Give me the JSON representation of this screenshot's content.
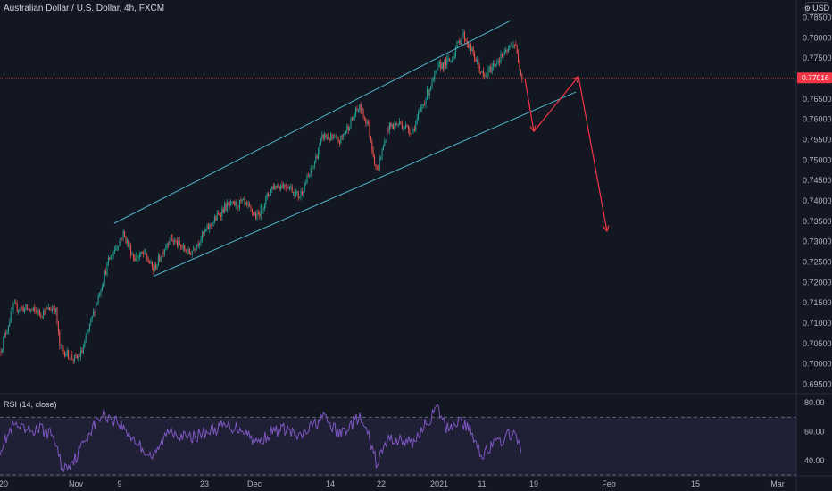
{
  "chart_data": [
    {
      "type": "candlestick",
      "title": "Australian Dollar / U.S. Dollar, 4h, FXCM",
      "currency": "USD",
      "ylim": [
        0.6925,
        0.7875
      ],
      "ytick_labels": [
        "0.78500",
        "0.78000",
        "0.77500",
        "0.77000",
        "0.76500",
        "0.76000",
        "0.75500",
        "0.75000",
        "0.74500",
        "0.74000",
        "0.73500",
        "0.73000",
        "0.72500",
        "0.72000",
        "0.71500",
        "0.71000",
        "0.70500",
        "0.70000",
        "0.69500"
      ],
      "ytick_values": [
        0.785,
        0.78,
        0.775,
        0.77,
        0.765,
        0.76,
        0.755,
        0.75,
        0.745,
        0.74,
        0.735,
        0.73,
        0.725,
        0.72,
        0.715,
        0.71,
        0.705,
        0.7,
        0.695
      ],
      "xtick_labels": [
        "20",
        "Nov",
        "9",
        "23",
        "Dec",
        "14",
        "22",
        "2021",
        "11",
        "19",
        "Feb",
        "15",
        "Mar"
      ],
      "current_price": "0.77016",
      "current_price_value": 0.77016,
      "up_color": "#26a69a",
      "down_color": "#ef5350",
      "price_path": [
        {
          "t": 0,
          "p": 0.703
        },
        {
          "t": 15,
          "p": 0.714
        },
        {
          "t": 30,
          "p": 0.7135
        },
        {
          "t": 45,
          "p": 0.7125
        },
        {
          "t": 62,
          "p": 0.714
        },
        {
          "t": 67,
          "p": 0.704
        },
        {
          "t": 75,
          "p": 0.7025
        },
        {
          "t": 85,
          "p": 0.701
        },
        {
          "t": 92,
          "p": 0.703
        },
        {
          "t": 100,
          "p": 0.709
        },
        {
          "t": 110,
          "p": 0.7165
        },
        {
          "t": 122,
          "p": 0.7255
        },
        {
          "t": 138,
          "p": 0.732
        },
        {
          "t": 150,
          "p": 0.726
        },
        {
          "t": 162,
          "p": 0.727
        },
        {
          "t": 172,
          "p": 0.723
        },
        {
          "t": 190,
          "p": 0.731
        },
        {
          "t": 212,
          "p": 0.727
        },
        {
          "t": 232,
          "p": 0.733
        },
        {
          "t": 252,
          "p": 0.7385
        },
        {
          "t": 272,
          "p": 0.7395
        },
        {
          "t": 288,
          "p": 0.736
        },
        {
          "t": 305,
          "p": 0.7435
        },
        {
          "t": 322,
          "p": 0.744
        },
        {
          "t": 335,
          "p": 0.741
        },
        {
          "t": 350,
          "p": 0.748
        },
        {
          "t": 362,
          "p": 0.756
        },
        {
          "t": 380,
          "p": 0.7545
        },
        {
          "t": 392,
          "p": 0.759
        },
        {
          "t": 402,
          "p": 0.763
        },
        {
          "t": 412,
          "p": 0.759
        },
        {
          "t": 422,
          "p": 0.747
        },
        {
          "t": 435,
          "p": 0.758
        },
        {
          "t": 448,
          "p": 0.759
        },
        {
          "t": 462,
          "p": 0.757
        },
        {
          "t": 478,
          "p": 0.766
        },
        {
          "t": 492,
          "p": 0.773
        },
        {
          "t": 505,
          "p": 0.7745
        },
        {
          "t": 518,
          "p": 0.781
        },
        {
          "t": 530,
          "p": 0.776
        },
        {
          "t": 542,
          "p": 0.77
        },
        {
          "t": 555,
          "p": 0.774
        },
        {
          "t": 566,
          "p": 0.776
        },
        {
          "t": 576,
          "p": 0.779
        },
        {
          "t": 585,
          "p": 0.7702
        }
      ],
      "channel": {
        "upper": [
          {
            "t": 128,
            "p": 0.7345
          },
          {
            "t": 572,
            "p": 0.7842
          }
        ],
        "lower": [
          {
            "t": 172,
            "p": 0.7215
          },
          {
            "t": 645,
            "p": 0.7667
          }
        ]
      },
      "projection": [
        {
          "t": 588,
          "p": 0.77
        },
        {
          "t": 598,
          "p": 0.757
        },
        {
          "t": 648,
          "p": 0.7705
        },
        {
          "t": 680,
          "p": 0.7325
        }
      ]
    },
    {
      "type": "line",
      "title": "RSI (14, close)",
      "ylim": [
        30,
        85
      ],
      "ytick_labels": [
        "80.00",
        "60.00",
        "40.00"
      ],
      "ytick_values": [
        80,
        60,
        40
      ],
      "bands": [
        70,
        30
      ],
      "line_color": "#7e57c2",
      "rsi_path": [
        {
          "t": 0,
          "p": 48
        },
        {
          "t": 15,
          "p": 64
        },
        {
          "t": 30,
          "p": 60
        },
        {
          "t": 45,
          "p": 62
        },
        {
          "t": 60,
          "p": 57
        },
        {
          "t": 70,
          "p": 34
        },
        {
          "t": 85,
          "p": 42
        },
        {
          "t": 100,
          "p": 60
        },
        {
          "t": 115,
          "p": 72
        },
        {
          "t": 130,
          "p": 68
        },
        {
          "t": 145,
          "p": 58
        },
        {
          "t": 160,
          "p": 48
        },
        {
          "t": 172,
          "p": 42
        },
        {
          "t": 190,
          "p": 62
        },
        {
          "t": 210,
          "p": 55
        },
        {
          "t": 232,
          "p": 60
        },
        {
          "t": 252,
          "p": 64
        },
        {
          "t": 272,
          "p": 62
        },
        {
          "t": 288,
          "p": 52
        },
        {
          "t": 305,
          "p": 60
        },
        {
          "t": 322,
          "p": 62
        },
        {
          "t": 335,
          "p": 55
        },
        {
          "t": 350,
          "p": 64
        },
        {
          "t": 362,
          "p": 70
        },
        {
          "t": 380,
          "p": 58
        },
        {
          "t": 392,
          "p": 64
        },
        {
          "t": 402,
          "p": 70
        },
        {
          "t": 412,
          "p": 58
        },
        {
          "t": 422,
          "p": 38
        },
        {
          "t": 435,
          "p": 55
        },
        {
          "t": 448,
          "p": 54
        },
        {
          "t": 462,
          "p": 52
        },
        {
          "t": 478,
          "p": 66
        },
        {
          "t": 490,
          "p": 76
        },
        {
          "t": 500,
          "p": 62
        },
        {
          "t": 515,
          "p": 68
        },
        {
          "t": 528,
          "p": 60
        },
        {
          "t": 540,
          "p": 44
        },
        {
          "t": 555,
          "p": 52
        },
        {
          "t": 565,
          "p": 55
        },
        {
          "t": 575,
          "p": 60
        },
        {
          "t": 585,
          "p": 43
        }
      ]
    }
  ]
}
